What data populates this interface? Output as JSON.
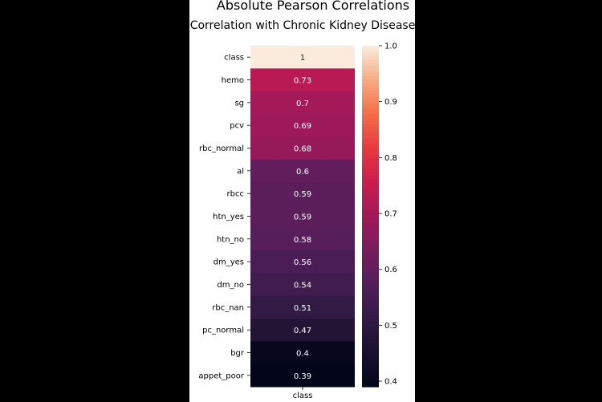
{
  "chart_data": {
    "type": "heatmap",
    "title": "Absolute Pearson Correlations",
    "subtitle": "Correlation with Chronic Kidney Disease",
    "xlabel": "",
    "ylabel": "",
    "columns": [
      "class"
    ],
    "rows": [
      {
        "label": "class",
        "value": 1,
        "display": "1"
      },
      {
        "label": "hemo",
        "value": 0.73,
        "display": "0.73"
      },
      {
        "label": "sg",
        "value": 0.7,
        "display": "0.7"
      },
      {
        "label": "pcv",
        "value": 0.69,
        "display": "0.69"
      },
      {
        "label": "rbc_normal",
        "value": 0.68,
        "display": "0.68"
      },
      {
        "label": "al",
        "value": 0.6,
        "display": "0.6"
      },
      {
        "label": "rbcc",
        "value": 0.59,
        "display": "0.59"
      },
      {
        "label": "htn_yes",
        "value": 0.59,
        "display": "0.59"
      },
      {
        "label": "htn_no",
        "value": 0.58,
        "display": "0.58"
      },
      {
        "label": "dm_yes",
        "value": 0.56,
        "display": "0.56"
      },
      {
        "label": "dm_no",
        "value": 0.54,
        "display": "0.54"
      },
      {
        "label": "rbc_nan",
        "value": 0.51,
        "display": "0.51"
      },
      {
        "label": "pc_normal",
        "value": 0.47,
        "display": "0.47"
      },
      {
        "label": "bgr",
        "value": 0.4,
        "display": "0.4"
      },
      {
        "label": "appet_poor",
        "value": 0.39,
        "display": "0.39"
      }
    ],
    "colorbar": {
      "range": [
        0.39,
        1.0
      ],
      "ticks": [
        {
          "value": 1.0,
          "label": "1.0"
        },
        {
          "value": 0.9,
          "label": "0.9"
        },
        {
          "value": 0.8,
          "label": "0.8"
        },
        {
          "value": 0.7,
          "label": "0.7"
        },
        {
          "value": 0.6,
          "label": "0.6"
        },
        {
          "value": 0.5,
          "label": "0.5"
        },
        {
          "value": 0.4,
          "label": "0.4"
        }
      ],
      "colormap": "rocket"
    },
    "legend": "right",
    "grid": false
  }
}
